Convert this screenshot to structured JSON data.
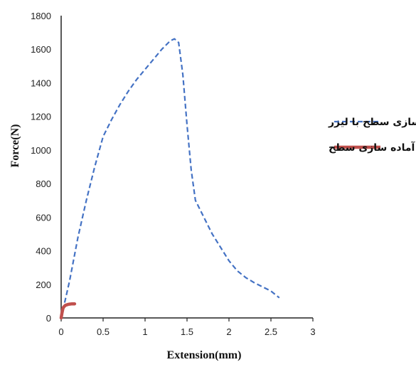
{
  "chart_data": {
    "type": "line",
    "title": "",
    "xlabel": "Extension(mm)",
    "ylabel": "Force(N)",
    "xlim": [
      0,
      3
    ],
    "ylim": [
      0,
      1800
    ],
    "xticks": [
      "0",
      "0.5",
      "1",
      "1.5",
      "2",
      "2.5",
      "3"
    ],
    "yticks": [
      "0",
      "200",
      "400",
      "600",
      "800",
      "1000",
      "1200",
      "1400",
      "1600",
      "1800"
    ],
    "grid": false,
    "legend": "right",
    "series": [
      {
        "name": "آماده سازی سطح با لیزر",
        "color": "#4472c4",
        "style": "dashed",
        "x": [
          0,
          0.1,
          0.2,
          0.3,
          0.4,
          0.5,
          0.6,
          0.7,
          0.8,
          0.9,
          1.0,
          1.1,
          1.2,
          1.3,
          1.35,
          1.4,
          1.45,
          1.5,
          1.55,
          1.6,
          1.7,
          1.8,
          1.9,
          2.0,
          2.1,
          2.2,
          2.3,
          2.4,
          2.5,
          2.6
        ],
        "y": [
          0,
          220,
          480,
          700,
          900,
          1080,
          1180,
          1270,
          1350,
          1420,
          1480,
          1540,
          1600,
          1650,
          1662,
          1640,
          1450,
          1150,
          880,
          700,
          600,
          500,
          420,
          340,
          280,
          240,
          210,
          185,
          160,
          120
        ]
      },
      {
        "name": "بدون آماده سازی سطح",
        "color": "#c0504d",
        "style": "solid",
        "x": [
          0,
          0.01,
          0.02,
          0.03,
          0.05,
          0.08,
          0.1,
          0.13,
          0.16
        ],
        "y": [
          0,
          30,
          55,
          65,
          75,
          80,
          82,
          84,
          84
        ]
      }
    ]
  }
}
